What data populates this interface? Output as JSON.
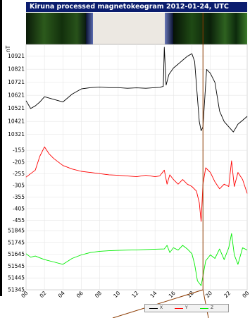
{
  "title": "Kiruna processed magnetokeogram 2012-01-24, UTC",
  "colors": {
    "x": "#000000",
    "y": "#ff0000",
    "z": "#00ee00",
    "cursor": "#8b3a00",
    "title_bg": "#0b1d6e"
  },
  "chart_data": {
    "type": "line",
    "unit_label": "nT",
    "x_ticks": [
      "00",
      "02",
      "04",
      "06",
      "08",
      "10",
      "12",
      "14",
      "16",
      "18",
      "20",
      "22",
      "00"
    ],
    "xlim": [
      0,
      24
    ],
    "cursor_x": 19.2,
    "panels": [
      {
        "series": "X",
        "ticks": [
          "10921",
          "10821",
          "10721",
          "10621",
          "10521",
          "10421",
          "10321"
        ],
        "ylim": [
          10271,
          11011
        ],
        "x": [
          0,
          0.5,
          1,
          1.5,
          2,
          3,
          4,
          5,
          6,
          7,
          8,
          9,
          10,
          11,
          12,
          13,
          14,
          14.5,
          14.9,
          15,
          15.2,
          15.5,
          16,
          16.5,
          17,
          17.5,
          18,
          18.3,
          18.6,
          18.8,
          19,
          19.2,
          19.6,
          20,
          20.5,
          21,
          21.5,
          22,
          22.5,
          23,
          23.5,
          24
        ],
        "values": [
          10580,
          10520,
          10540,
          10570,
          10610,
          10590,
          10570,
          10630,
          10670,
          10680,
          10685,
          10680,
          10680,
          10675,
          10678,
          10675,
          10680,
          10682,
          10690,
          10990,
          10700,
          10780,
          10830,
          10860,
          10890,
          10920,
          10940,
          10880,
          10600,
          10420,
          10350,
          10380,
          10820,
          10790,
          10720,
          10500,
          10420,
          10380,
          10340,
          10400,
          10430,
          10460
        ]
      },
      {
        "series": "Y",
        "ticks": [
          "-155",
          "-205",
          "-255",
          "-305",
          "-355",
          "-405",
          "-455"
        ],
        "ylim": [
          -484,
          -115
        ],
        "x": [
          0,
          1,
          1.5,
          2,
          2.5,
          3,
          4,
          5,
          6,
          7,
          8,
          9,
          10,
          11,
          12,
          13,
          14,
          14.5,
          15,
          15.3,
          15.6,
          16,
          16.5,
          17,
          17.5,
          18,
          18.5,
          18.8,
          19,
          19.2,
          19.5,
          20,
          20.5,
          21,
          21.5,
          22,
          22.3,
          22.6,
          23,
          23.5,
          24
        ],
        "values": [
          -270,
          -240,
          -180,
          -140,
          -170,
          -190,
          -220,
          -235,
          -245,
          -250,
          -255,
          -260,
          -262,
          -265,
          -268,
          -262,
          -268,
          -265,
          -240,
          -300,
          -260,
          -280,
          -300,
          -280,
          -300,
          -310,
          -330,
          -380,
          -460,
          -300,
          -230,
          -250,
          -290,
          -320,
          -300,
          -310,
          -200,
          -310,
          -250,
          -280,
          -340
        ]
      },
      {
        "series": "Z",
        "ticks": [
          "51845",
          "51745",
          "51645",
          "51545",
          "51445",
          "51345"
        ],
        "ylim": [
          51345,
          51875
        ],
        "x": [
          0,
          0.5,
          1,
          1.5,
          2,
          3,
          4,
          5,
          6,
          7,
          8,
          9,
          10,
          11,
          12,
          13,
          14,
          15,
          15.3,
          15.6,
          16,
          16.5,
          17,
          17.5,
          18,
          18.3,
          18.6,
          19,
          19.2,
          19.5,
          20,
          20.5,
          21,
          21.5,
          22,
          22.3,
          22.6,
          23,
          23.5,
          24
        ],
        "values": [
          51650,
          51620,
          51630,
          51615,
          51600,
          51580,
          51560,
          51610,
          51640,
          51660,
          51670,
          51675,
          51678,
          51680,
          51682,
          51685,
          51688,
          51690,
          51720,
          51660,
          51700,
          51680,
          51720,
          51690,
          51650,
          51560,
          51420,
          51380,
          51460,
          51590,
          51640,
          51610,
          51690,
          51600,
          51700,
          51820,
          51640,
          51560,
          51700,
          51680
        ]
      }
    ],
    "legend": [
      {
        "name": "X"
      },
      {
        "name": "Y"
      },
      {
        "name": "Z"
      }
    ]
  }
}
